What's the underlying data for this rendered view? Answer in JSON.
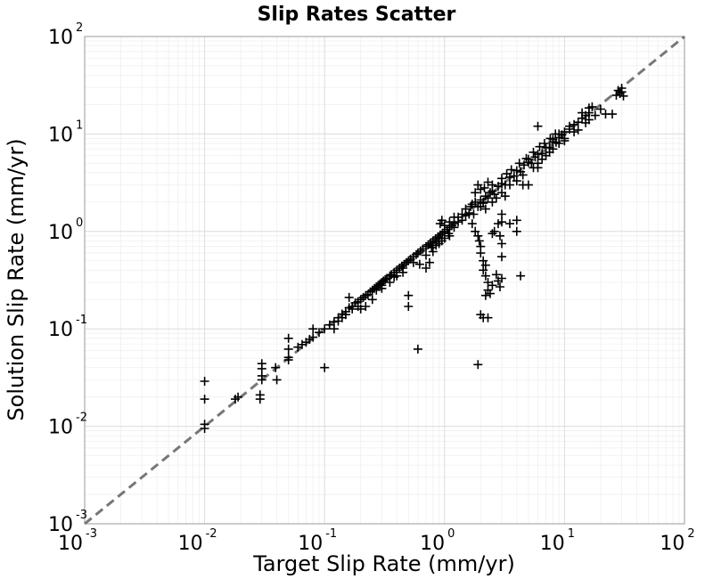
{
  "chart_data": {
    "type": "scatter",
    "title": "Slip Rates Scatter",
    "xlabel": "Target Slip Rate (mm/yr)",
    "ylabel": "Solution Slip Rate (mm/yr)",
    "xscale": "log",
    "yscale": "log",
    "xlim": [
      0.001,
      100
    ],
    "ylim": [
      0.001,
      100
    ],
    "grid": true,
    "legend": "none",
    "marker": "plus",
    "marker_color": "#000000",
    "reference_line": {
      "style": "dashed",
      "color": "#777777",
      "from": [
        0.001,
        0.001
      ],
      "to": [
        100,
        100
      ]
    },
    "ticks": [
      {
        "base": "10",
        "exp": "-3",
        "value": 0.001
      },
      {
        "base": "10",
        "exp": "-2",
        "value": 0.01
      },
      {
        "base": "10",
        "exp": "-1",
        "value": 0.1
      },
      {
        "base": "10",
        "exp": "0",
        "value": 1
      },
      {
        "base": "10",
        "exp": "1",
        "value": 10
      },
      {
        "base": "10",
        "exp": "2",
        "value": 100
      }
    ],
    "points": [
      [
        0.01,
        0.0095
      ],
      [
        0.01,
        0.0105
      ],
      [
        0.01,
        0.019
      ],
      [
        0.01,
        0.029
      ],
      [
        0.018,
        0.019
      ],
      [
        0.019,
        0.02
      ],
      [
        0.029,
        0.019
      ],
      [
        0.029,
        0.021
      ],
      [
        0.03,
        0.03
      ],
      [
        0.03,
        0.033
      ],
      [
        0.03,
        0.039
      ],
      [
        0.03,
        0.044
      ],
      [
        0.039,
        0.04
      ],
      [
        0.04,
        0.03
      ],
      [
        0.05,
        0.048
      ],
      [
        0.05,
        0.051
      ],
      [
        0.05,
        0.062
      ],
      [
        0.05,
        0.08
      ],
      [
        0.06,
        0.065
      ],
      [
        0.065,
        0.069
      ],
      [
        0.07,
        0.073
      ],
      [
        0.075,
        0.078
      ],
      [
        0.08,
        0.082
      ],
      [
        0.08,
        0.1
      ],
      [
        0.09,
        0.092
      ],
      [
        0.1,
        0.04
      ],
      [
        0.1,
        0.1
      ],
      [
        0.11,
        0.11
      ],
      [
        0.12,
        0.118
      ],
      [
        0.13,
        0.13
      ],
      [
        0.14,
        0.142
      ],
      [
        0.15,
        0.15
      ],
      [
        0.16,
        0.165
      ],
      [
        0.17,
        0.17
      ],
      [
        0.18,
        0.185
      ],
      [
        0.19,
        0.19
      ],
      [
        0.2,
        0.2
      ],
      [
        0.21,
        0.21
      ],
      [
        0.22,
        0.22
      ],
      [
        0.23,
        0.225
      ],
      [
        0.24,
        0.24
      ],
      [
        0.25,
        0.25
      ],
      [
        0.26,
        0.26
      ],
      [
        0.27,
        0.27
      ],
      [
        0.28,
        0.28
      ],
      [
        0.29,
        0.29
      ],
      [
        0.3,
        0.3
      ],
      [
        0.31,
        0.31
      ],
      [
        0.32,
        0.32
      ],
      [
        0.33,
        0.33
      ],
      [
        0.35,
        0.35
      ],
      [
        0.36,
        0.36
      ],
      [
        0.38,
        0.38
      ],
      [
        0.4,
        0.4
      ],
      [
        0.42,
        0.42
      ],
      [
        0.44,
        0.44
      ],
      [
        0.46,
        0.46
      ],
      [
        0.48,
        0.48
      ],
      [
        0.5,
        0.5
      ],
      [
        0.52,
        0.52
      ],
      [
        0.55,
        0.55
      ],
      [
        0.58,
        0.58
      ],
      [
        0.6,
        0.6
      ],
      [
        0.63,
        0.63
      ],
      [
        0.66,
        0.66
      ],
      [
        0.7,
        0.7
      ],
      [
        0.73,
        0.73
      ],
      [
        0.76,
        0.76
      ],
      [
        0.8,
        0.8
      ],
      [
        0.84,
        0.84
      ],
      [
        0.88,
        0.88
      ],
      [
        0.92,
        0.92
      ],
      [
        0.96,
        0.96
      ],
      [
        1.0,
        1.0
      ],
      [
        1.05,
        1.05
      ],
      [
        1.1,
        1.1
      ],
      [
        1.15,
        1.15
      ],
      [
        1.2,
        1.2
      ],
      [
        0.16,
        0.21
      ],
      [
        0.2,
        0.16
      ],
      [
        0.25,
        0.2
      ],
      [
        0.22,
        0.17
      ],
      [
        0.3,
        0.26
      ],
      [
        0.45,
        0.38
      ],
      [
        0.5,
        0.17
      ],
      [
        0.5,
        0.22
      ],
      [
        0.6,
        0.062
      ],
      [
        0.55,
        0.48
      ],
      [
        0.62,
        0.46
      ],
      [
        0.7,
        0.42
      ],
      [
        0.75,
        0.48
      ],
      [
        0.7,
        0.57
      ],
      [
        0.8,
        0.62
      ],
      [
        0.8,
        0.72
      ],
      [
        0.85,
        0.78
      ],
      [
        0.9,
        0.85
      ],
      [
        0.92,
        1.2
      ],
      [
        0.95,
        1.3
      ],
      [
        1.0,
        1.15
      ],
      [
        1.08,
        0.95
      ],
      [
        1.1,
        1.25
      ],
      [
        1.2,
        1.4
      ],
      [
        1.3,
        1.25
      ],
      [
        1.4,
        1.5
      ],
      [
        1.5,
        1.45
      ],
      [
        1.6,
        1.55
      ],
      [
        1.7,
        1.9
      ],
      [
        1.75,
        1.5
      ],
      [
        1.8,
        2.0
      ],
      [
        1.9,
        1.8
      ],
      [
        2.0,
        2.1
      ],
      [
        2.1,
        1.95
      ],
      [
        2.2,
        2.3
      ],
      [
        2.3,
        2.2
      ],
      [
        2.4,
        2.5
      ],
      [
        2.5,
        2.6
      ],
      [
        2.6,
        2.4
      ],
      [
        2.8,
        2.9
      ],
      [
        3.0,
        3.1
      ],
      [
        3.2,
        3.0
      ],
      [
        3.5,
        3.6
      ],
      [
        3.8,
        3.7
      ],
      [
        4.0,
        4.2
      ],
      [
        4.3,
        4.1
      ],
      [
        4.6,
        4.8
      ],
      [
        5.0,
        5.1
      ],
      [
        5.3,
        5.0
      ],
      [
        5.7,
        5.8
      ],
      [
        6.0,
        6.2
      ],
      [
        6.5,
        6.3
      ],
      [
        7.0,
        7.2
      ],
      [
        7.5,
        7.3
      ],
      [
        8.0,
        8.3
      ],
      [
        8.5,
        8.2
      ],
      [
        9.0,
        9.2
      ],
      [
        9.5,
        9.8
      ],
      [
        10.0,
        10.5
      ],
      [
        11.0,
        11.2
      ],
      [
        12.0,
        12.5
      ],
      [
        13.0,
        13.2
      ],
      [
        14.0,
        14.5
      ],
      [
        15.0,
        15.5
      ],
      [
        16.0,
        16.5
      ],
      [
        1.7,
        1.2
      ],
      [
        1.8,
        1.0
      ],
      [
        1.9,
        0.9
      ],
      [
        1.95,
        0.8
      ],
      [
        2.0,
        0.7
      ],
      [
        2.0,
        0.6
      ],
      [
        2.1,
        0.5
      ],
      [
        2.2,
        0.45
      ],
      [
        2.1,
        0.4
      ],
      [
        2.2,
        0.35
      ],
      [
        2.3,
        0.3
      ],
      [
        2.3,
        0.25
      ],
      [
        2.2,
        0.22
      ],
      [
        2.4,
        0.23
      ],
      [
        2.5,
        0.28
      ],
      [
        2.7,
        0.36
      ],
      [
        2.8,
        0.31
      ],
      [
        2.9,
        0.27
      ],
      [
        3.0,
        0.33
      ],
      [
        3.0,
        0.55
      ],
      [
        3.0,
        0.75
      ],
      [
        2.9,
        0.9
      ],
      [
        2.6,
        1.0
      ],
      [
        2.5,
        0.95
      ],
      [
        2.8,
        1.2
      ],
      [
        3.0,
        1.25
      ],
      [
        3.0,
        1.5
      ],
      [
        3.5,
        1.2
      ],
      [
        4.0,
        1.0
      ],
      [
        4.0,
        1.3
      ],
      [
        4.3,
        0.35
      ],
      [
        2.0,
        0.14
      ],
      [
        2.1,
        0.13
      ],
      [
        2.3,
        0.13
      ],
      [
        1.9,
        0.043
      ],
      [
        2.0,
        1.8
      ],
      [
        2.2,
        1.7
      ],
      [
        2.5,
        2.0
      ],
      [
        2.7,
        2.2
      ],
      [
        3.0,
        2.5
      ],
      [
        3.5,
        3.0
      ],
      [
        3.2,
        2.3
      ],
      [
        4.0,
        3.3
      ],
      [
        4.5,
        3.8
      ],
      [
        5.0,
        3.0
      ],
      [
        5.5,
        4.5
      ],
      [
        6.0,
        5.0
      ],
      [
        7.0,
        6.0
      ],
      [
        8.0,
        7.0
      ],
      [
        9.0,
        8.0
      ],
      [
        10.0,
        9.0
      ],
      [
        12.0,
        10.5
      ],
      [
        13.0,
        11.0
      ],
      [
        15.0,
        13.0
      ],
      [
        16.0,
        14.0
      ],
      [
        18.0,
        15.5
      ],
      [
        20.0,
        18.0
      ],
      [
        22.0,
        16.0
      ],
      [
        25.0,
        16.0
      ],
      [
        4.5,
        3.0
      ],
      [
        5.0,
        5.5
      ],
      [
        6.0,
        4.5
      ],
      [
        6.5,
        5.5
      ],
      [
        7.5,
        6.5
      ],
      [
        8.0,
        8.8
      ],
      [
        9.0,
        10.0
      ],
      [
        10.0,
        8.5
      ],
      [
        11.0,
        12.0
      ],
      [
        14.0,
        16.5
      ],
      [
        16.0,
        18.5
      ],
      [
        17.0,
        19.0
      ],
      [
        1.2,
        1.1
      ],
      [
        1.3,
        1.4
      ],
      [
        1.4,
        1.3
      ],
      [
        1.5,
        1.7
      ],
      [
        1.6,
        1.5
      ],
      [
        1.65,
        1.8
      ],
      [
        2.5,
        3.0
      ],
      [
        3.0,
        3.5
      ],
      [
        3.3,
        3.9
      ],
      [
        3.6,
        4.3
      ],
      [
        4.2,
        5.0
      ],
      [
        4.8,
        5.6
      ],
      [
        5.5,
        6.5
      ],
      [
        6.2,
        7.4
      ],
      [
        6.8,
        8.0
      ],
      [
        7.6,
        9.0
      ],
      [
        8.4,
        10.0
      ],
      [
        6.0,
        12.0
      ],
      [
        28.0,
        28.0
      ],
      [
        29.0,
        26.0
      ],
      [
        30.0,
        27.0
      ],
      [
        31.0,
        24.5
      ],
      [
        30.0,
        29.5
      ],
      [
        27.0,
        25.0
      ],
      [
        1.0,
        0.85
      ],
      [
        0.95,
        0.8
      ],
      [
        0.85,
        0.72
      ],
      [
        0.78,
        0.68
      ],
      [
        0.9,
        0.75
      ],
      [
        1.1,
        0.9
      ],
      [
        1.8,
        2.5
      ],
      [
        1.9,
        3.0
      ],
      [
        2.0,
        2.7
      ],
      [
        2.1,
        2.0
      ],
      [
        2.15,
        2.8
      ],
      [
        2.3,
        3.2
      ],
      [
        0.35,
        0.3
      ],
      [
        0.4,
        0.35
      ],
      [
        0.45,
        0.42
      ],
      [
        0.38,
        0.34
      ],
      [
        0.3,
        0.28
      ],
      [
        0.27,
        0.25
      ],
      [
        0.12,
        0.1
      ],
      [
        0.13,
        0.12
      ],
      [
        0.14,
        0.13
      ],
      [
        0.15,
        0.14
      ],
      [
        0.17,
        0.16
      ],
      [
        0.19,
        0.17
      ]
    ]
  }
}
